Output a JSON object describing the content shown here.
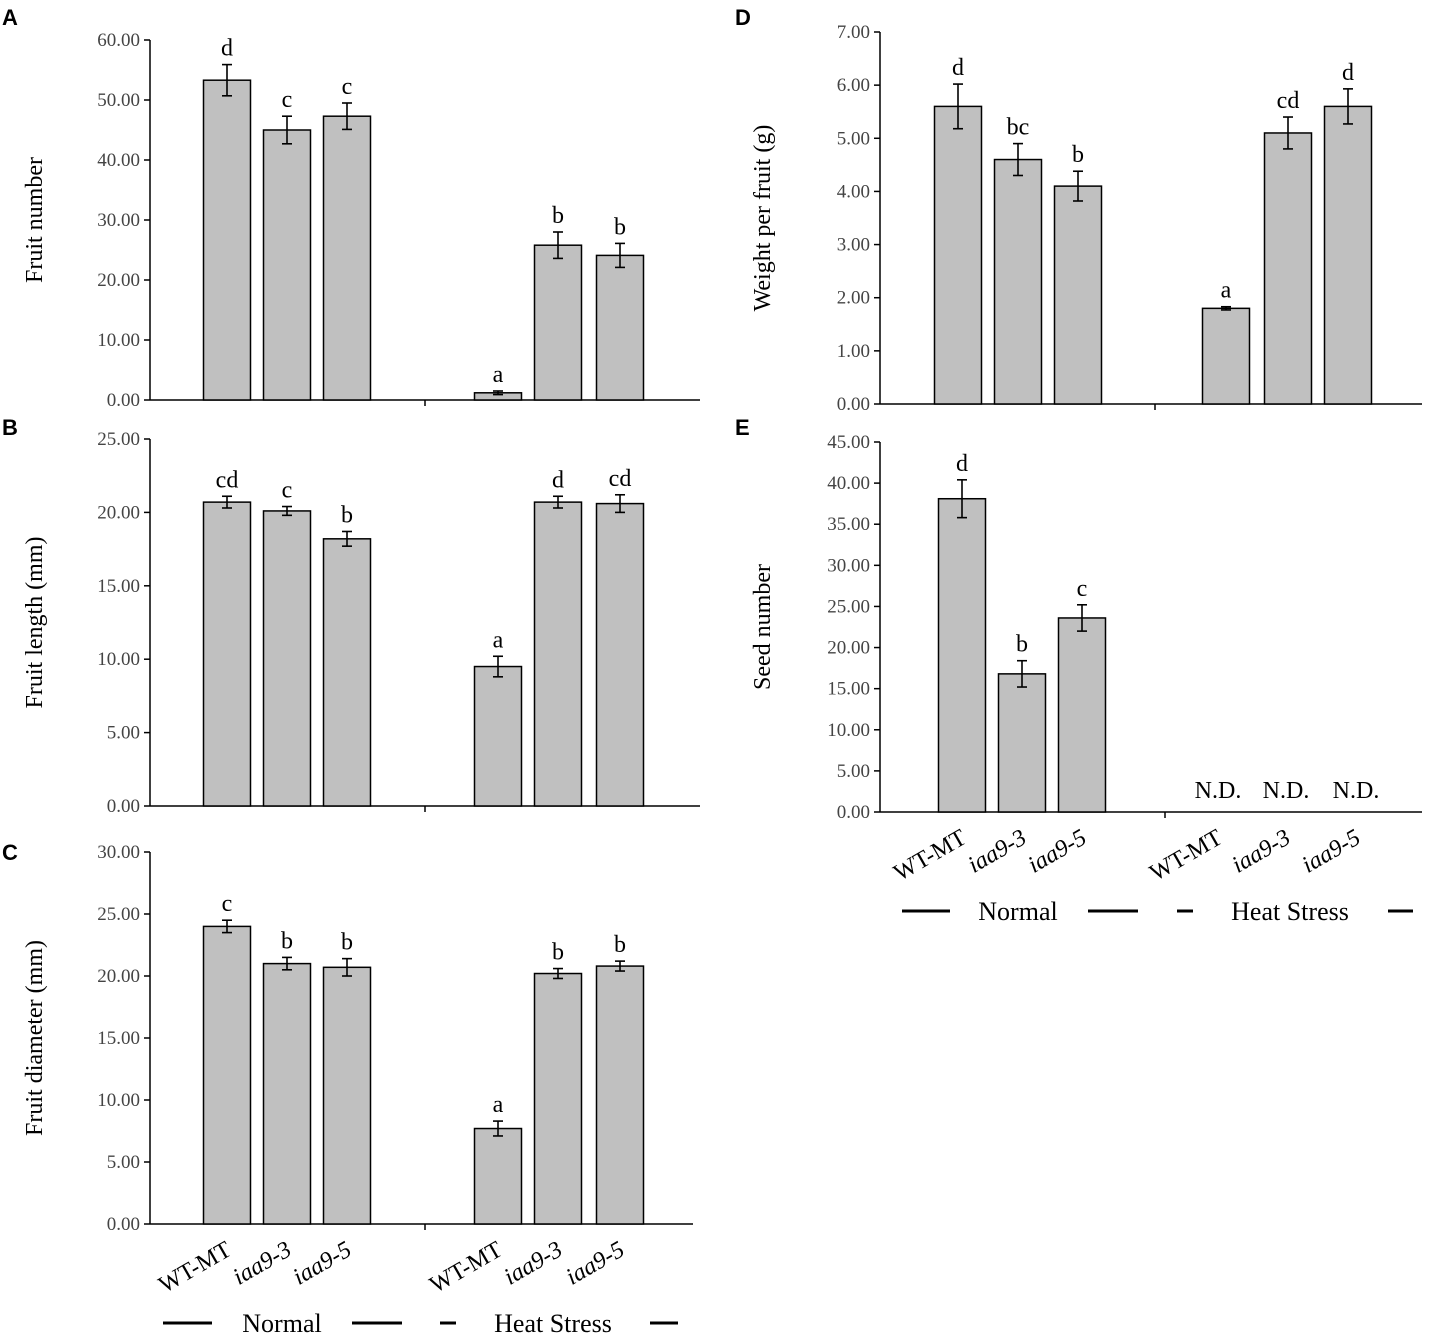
{
  "figure": {
    "group_labels": [
      "Normal",
      "Heat Stress"
    ]
  },
  "chart_data": [
    {
      "panel": "A",
      "type": "bar",
      "ylabel": "Fruit number",
      "ylim": [
        0,
        60
      ],
      "ytick_step": 10,
      "groups": [
        "Normal",
        "Heat Stress"
      ],
      "categories": [
        "WT-MT",
        "iaa9-3",
        "iaa9-5",
        "WT-MT",
        "iaa9-3",
        "iaa9-5"
      ],
      "values": [
        53.3,
        45.0,
        47.3,
        1.2,
        25.8,
        24.1
      ],
      "errors": [
        2.6,
        2.3,
        2.2,
        0.3,
        2.2,
        2.0
      ],
      "significance": [
        "d",
        "c",
        "c",
        "a",
        "b",
        "b"
      ]
    },
    {
      "panel": "B",
      "type": "bar",
      "ylabel": "Fruit length (mm)",
      "ylim": [
        0,
        25
      ],
      "ytick_step": 5,
      "groups": [
        "Normal",
        "Heat Stress"
      ],
      "categories": [
        "WT-MT",
        "iaa9-3",
        "iaa9-5",
        "WT-MT",
        "iaa9-3",
        "iaa9-5"
      ],
      "values": [
        20.7,
        20.1,
        18.2,
        9.5,
        20.7,
        20.6
      ],
      "errors": [
        0.4,
        0.3,
        0.5,
        0.7,
        0.4,
        0.6
      ],
      "significance": [
        "cd",
        "c",
        "b",
        "a",
        "d",
        "cd"
      ]
    },
    {
      "panel": "C",
      "type": "bar",
      "ylabel": "Fruit diameter (mm)",
      "ylim": [
        0,
        30
      ],
      "ytick_step": 5,
      "groups": [
        "Normal",
        "Heat Stress"
      ],
      "categories": [
        "WT-MT",
        "iaa9-3",
        "iaa9-5",
        "WT-MT",
        "iaa9-3",
        "iaa9-5"
      ],
      "values": [
        24.0,
        21.0,
        20.7,
        7.7,
        20.2,
        20.8
      ],
      "errors": [
        0.5,
        0.5,
        0.7,
        0.6,
        0.4,
        0.4
      ],
      "significance": [
        "c",
        "b",
        "b",
        "a",
        "b",
        "b"
      ],
      "show_categories": true
    },
    {
      "panel": "D",
      "type": "bar",
      "ylabel": "Weight per fruit (g)",
      "ylim": [
        0,
        7
      ],
      "ytick_step": 1,
      "groups": [
        "Normal",
        "Heat Stress"
      ],
      "categories": [
        "WT-MT",
        "iaa9-3",
        "iaa9-5",
        "WT-MT",
        "iaa9-3",
        "iaa9-5"
      ],
      "values": [
        5.6,
        4.6,
        4.1,
        1.8,
        5.1,
        5.6
      ],
      "errors": [
        0.42,
        0.3,
        0.28,
        0.03,
        0.3,
        0.33
      ],
      "significance": [
        "d",
        "bc",
        "b",
        "a",
        "cd",
        "d"
      ]
    },
    {
      "panel": "E",
      "type": "bar",
      "ylabel": "Seed number",
      "ylim": [
        0,
        45
      ],
      "ytick_step": 5,
      "groups": [
        "Normal",
        "Heat Stress"
      ],
      "categories": [
        "WT-MT",
        "iaa9-3",
        "iaa9-5",
        "WT-MT",
        "iaa9-3",
        "iaa9-5"
      ],
      "values": [
        38.1,
        16.8,
        23.6,
        null,
        null,
        null
      ],
      "errors": [
        2.3,
        1.6,
        1.6,
        null,
        null,
        null
      ],
      "significance": [
        "d",
        "b",
        "c",
        "N.D.",
        "N.D.",
        "N.D."
      ],
      "show_categories": true
    }
  ]
}
